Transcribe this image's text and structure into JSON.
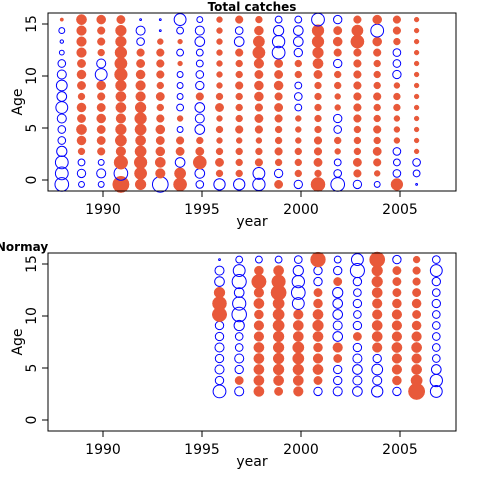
{
  "colors": {
    "positive": "#E8593A",
    "negative": "#0000FF",
    "frame": "#000000",
    "background": "#FFFFFF"
  },
  "chart_data": [
    {
      "type": "scatter",
      "subtype": "bubble",
      "title": "Total catches",
      "xlabel": "year",
      "ylabel": "Age",
      "xlim": [
        1987.3,
        2008.0
      ],
      "ylim": [
        -0.6,
        15.6
      ],
      "xticks": [
        "1990",
        "1995",
        "2000",
        "2005"
      ],
      "yticks": [
        "0",
        "5",
        "10",
        "15"
      ],
      "grid": false,
      "legend": "none",
      "years": [
        1988,
        1989,
        1990,
        1991,
        1992,
        1993,
        1994,
        1995,
        1996,
        1997,
        1998,
        1999,
        2000,
        2001,
        2002,
        2003,
        2004,
        2005,
        2006
      ],
      "ages": [
        0,
        1,
        2,
        3,
        4,
        5,
        6,
        7,
        8,
        9,
        10,
        11,
        12,
        13,
        14,
        15
      ],
      "residuals": [
        [
          -1.6,
          -1.4,
          -1.4,
          -0.9,
          -0.5,
          -0.5,
          -0.7,
          -1.2,
          -0.8,
          -1.0,
          -0.7,
          -0.5,
          -0.2,
          -0.1,
          -0.3,
          0.1
        ],
        [
          -0.3,
          -0.6,
          -0.4,
          0.4,
          0.7,
          0.9,
          0.6,
          0.7,
          0.4,
          0.6,
          0.7,
          0.6,
          0.8,
          0.8,
          0.8,
          0.9
        ],
        [
          -0.3,
          -0.7,
          -0.3,
          0.5,
          0.6,
          0.6,
          0.7,
          0.6,
          0.5,
          0.7,
          -1.2,
          -0.7,
          0.4,
          0.5,
          0.5,
          0.7
        ],
        [
          2.3,
          -1.6,
          1.6,
          0.8,
          1.1,
          1.0,
          0.8,
          0.9,
          0.9,
          1.0,
          1.4,
          1.3,
          1.2,
          1.0,
          1.0,
          0.6
        ],
        [
          1.0,
          1.3,
          1.4,
          1.1,
          0.9,
          1.1,
          1.2,
          1.0,
          0.8,
          0.8,
          0.7,
          0.6,
          0.5,
          -0.5,
          -0.7,
          0
        ],
        [
          -2.1,
          0.8,
          0.9,
          0.7,
          0.6,
          0.7,
          0.5,
          0.4,
          0.6,
          0.4,
          0.5,
          0.5,
          0.5,
          0.3,
          0,
          0
        ],
        [
          1.5,
          1.1,
          -0.8,
          0.6,
          0.5,
          -0.3,
          0.3,
          -0.4,
          -0.3,
          -0.3,
          -0.3,
          0.2,
          -0.4,
          0.2,
          -0.4,
          -1.2
        ],
        [
          -0.5,
          -0.8,
          1.5,
          0.6,
          0.4,
          -0.8,
          -0.7,
          -0.8,
          0.5,
          -0.6,
          -0.5,
          -0.4,
          -0.4,
          -0.8,
          -0.7,
          -0.3
        ],
        [
          -1.1,
          0.4,
          0.6,
          0.4,
          0.3,
          0.4,
          0.3,
          0.6,
          0.4,
          0.3,
          0.3,
          0.3,
          0.3,
          0.3,
          0.3,
          0.3
        ],
        [
          -1.1,
          0.4,
          0.4,
          0.4,
          0.3,
          0.5,
          0.4,
          0.4,
          0.4,
          0.5,
          0.4,
          0.4,
          0.5,
          -0.8,
          -0.5,
          0.5
        ],
        [
          -1.3,
          -1.2,
          0.5,
          0.4,
          0.3,
          0.5,
          0.6,
          0.5,
          0.7,
          0.7,
          0.6,
          0.8,
          1.3,
          1.1,
          0.7,
          0.4
        ],
        [
          0.6,
          -0.6,
          0.4,
          0.5,
          0.4,
          0.4,
          0.5,
          0.6,
          0.5,
          0.7,
          0.6,
          0.6,
          -1.4,
          -1.3,
          -0.9,
          -0.4
        ],
        [
          -0.6,
          0.4,
          0.4,
          0.4,
          0.3,
          0.3,
          0.3,
          -0.4,
          -0.5,
          -0.4,
          0.4,
          0.4,
          -0.6,
          -0.8,
          -0.8,
          -0.4
        ],
        [
          1.7,
          0.4,
          0.6,
          0.5,
          0.5,
          0.4,
          0.4,
          0.4,
          0.4,
          0.4,
          0.6,
          0.9,
          1.0,
          1.2,
          1.2,
          -1.4
        ],
        [
          -1.6,
          -0.5,
          -0.4,
          0.3,
          0.4,
          -0.5,
          -0.6,
          0.3,
          0.3,
          0.4,
          0.4,
          -0.6,
          0.5,
          0.7,
          0.6,
          -0.6
        ],
        [
          -0.6,
          0.5,
          0.6,
          0.4,
          0.4,
          0.4,
          0.5,
          0.5,
          0.5,
          0.5,
          0.5,
          0.5,
          0.5,
          1.5,
          1.1,
          0.5
        ],
        [
          -0.3,
          0.3,
          0.5,
          0.6,
          0.4,
          0.5,
          0.4,
          0.4,
          0.5,
          0.4,
          0.4,
          0.4,
          0.5,
          0.7,
          -1.4,
          0.7
        ],
        [
          1.2,
          -0.5,
          -0.4,
          -0.5,
          0.3,
          0.3,
          0.3,
          0.4,
          0.4,
          0.3,
          -0.6,
          -0.5,
          -0.5,
          0.4,
          0.5,
          0.5
        ],
        [
          0,
          -0.4,
          -0.5,
          0.2,
          0.2,
          0.2,
          0.2,
          0.2,
          0.2,
          0.2,
          0.2,
          0.2,
          0.2,
          0.2,
          0.2,
          0.2
        ]
      ]
    },
    {
      "type": "scatter",
      "subtype": "bubble",
      "title": "Normay",
      "xlabel": "year",
      "ylabel": "Age",
      "xlim": [
        1987.3,
        2008.0
      ],
      "ylim": [
        -0.6,
        15.6
      ],
      "xticks": [
        "1990",
        "1995",
        "2000",
        "2005"
      ],
      "yticks": [
        "0",
        "5",
        "10",
        "15"
      ],
      "grid": false,
      "legend": "none",
      "years": [
        1996,
        1997,
        1998,
        1999,
        2000,
        2001,
        2002,
        2003,
        2004,
        2005,
        2006,
        2007
      ],
      "ages": [
        3,
        4,
        5,
        6,
        7,
        8,
        9,
        10,
        11,
        12,
        13,
        14,
        15
      ],
      "residuals": [
        [
          -1.4,
          -0.6,
          -0.7,
          -0.6,
          -0.7,
          -0.6,
          -0.6,
          1.8,
          1.7,
          1.0,
          -0.8,
          -0.7,
          0
        ],
        [
          -0.7,
          0.6,
          -0.6,
          -0.7,
          -0.5,
          -0.5,
          -0.9,
          -1.8,
          -1.5,
          -0.8,
          -1.7,
          -1.2,
          -0.4
        ],
        [
          0.9,
          0.9,
          0.9,
          0.9,
          0.9,
          0.8,
          0.8,
          0.7,
          0.9,
          0.8,
          1.8,
          0.7,
          -0.4
        ],
        [
          0.6,
          0.9,
          1.0,
          1.0,
          1.0,
          1.0,
          1.1,
          1.1,
          1.1,
          2.0,
          1.6,
          0.9,
          -0.4
        ],
        [
          0.8,
          0.9,
          1.0,
          1.1,
          1.1,
          0.9,
          0.9,
          0.8,
          -1.2,
          -1.6,
          -1.3,
          -0.9,
          -0.5
        ],
        [
          -0.6,
          0.6,
          0.9,
          0.8,
          0.7,
          0.9,
          1.0,
          0.9,
          0.7,
          0.6,
          -0.6,
          -0.6,
          1.9
        ],
        [
          -0.7,
          -0.6,
          -0.6,
          0.6,
          0.8,
          -0.8,
          -0.7,
          -0.8,
          -0.8,
          -0.9,
          0.6,
          -0.6,
          -0.4
        ],
        [
          -0.8,
          -0.7,
          -0.8,
          -0.7,
          -0.6,
          0.6,
          -0.6,
          -0.5,
          -0.6,
          -0.5,
          -0.6,
          -1.7,
          -1.2
        ],
        [
          -1.1,
          -0.7,
          -1.0,
          -0.6,
          0.8,
          0.9,
          0.9,
          0.8,
          0.8,
          0.9,
          1.0,
          1.0,
          2.0
        ],
        [
          -0.6,
          0.7,
          0.8,
          0.8,
          0.9,
          0.8,
          0.8,
          0.8,
          0.7,
          0.6,
          0.6,
          0.6,
          -0.6
        ],
        [
          2.3,
          1.1,
          0.9,
          0.8,
          0.9,
          0.8,
          0.7,
          0.6,
          0.7,
          0.6,
          0.5,
          0.5,
          0.4
        ],
        [
          -1.2,
          -1.3,
          -0.8,
          -0.5,
          -0.5,
          -0.5,
          -0.5,
          -0.5,
          -0.6,
          -0.5,
          -0.6,
          -1.2,
          -0.5
        ]
      ]
    }
  ]
}
